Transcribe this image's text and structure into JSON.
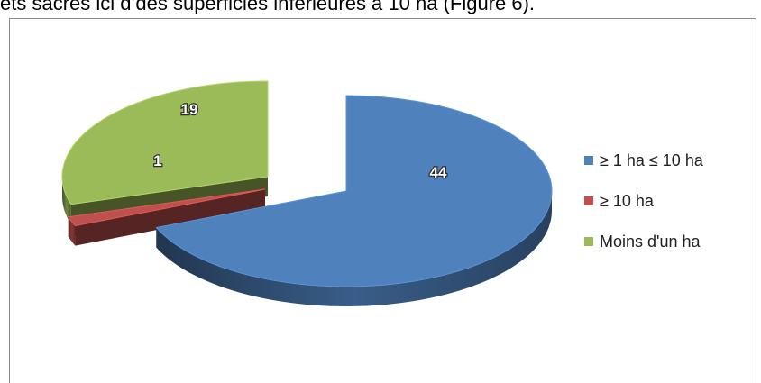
{
  "caption": "ets sacrés ici d’des superficies inférieures à 10 ha (Figure 6).",
  "chart_data": {
    "type": "pie",
    "style": "3d-exploded",
    "categories": [
      "≥ 1 ha ≤ 10 ha",
      "≥ 10 ha",
      "Moins d'un ha"
    ],
    "values": [
      44,
      1,
      19
    ],
    "data_labels": [
      "44",
      "1",
      "19"
    ],
    "colors": [
      "#4f81bd",
      "#c0504d",
      "#9bbb59"
    ],
    "legend_position": "right"
  },
  "legend": {
    "items": [
      {
        "label": "≥ 1 ha ≤ 10 ha",
        "color": "#4f81bd"
      },
      {
        "label": "≥ 10 ha",
        "color": "#c0504d"
      },
      {
        "label": "Moins d'un ha",
        "color": "#9bbb59"
      }
    ]
  }
}
